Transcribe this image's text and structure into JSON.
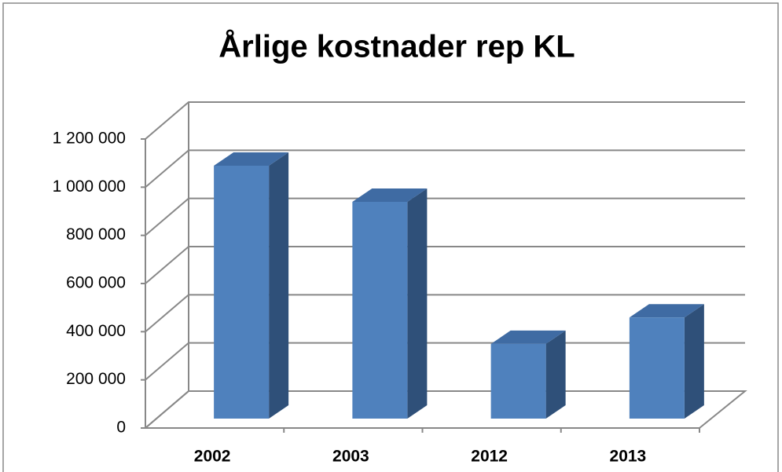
{
  "chart_data": {
    "type": "bar3d",
    "title": "Årlige kostnader rep KL",
    "categories": [
      "2002",
      "2003",
      "2012",
      "2013"
    ],
    "values": [
      1050000,
      900000,
      310000,
      420000
    ],
    "color": "#4f81bd",
    "ylim": [
      0,
      1200000
    ],
    "yticks": [
      0,
      {
        "value": 200000,
        "label": "200 000"
      },
      {
        "value": 400000,
        "label": "400 000"
      },
      {
        "value": 600000,
        "label": "600 000"
      },
      {
        "value": 800000,
        "label": "800 000"
      },
      {
        "value": 1000000,
        "label": "1 000 000"
      },
      {
        "value": 1200000,
        "label": "1 200 000"
      }
    ],
    "grid": true
  }
}
